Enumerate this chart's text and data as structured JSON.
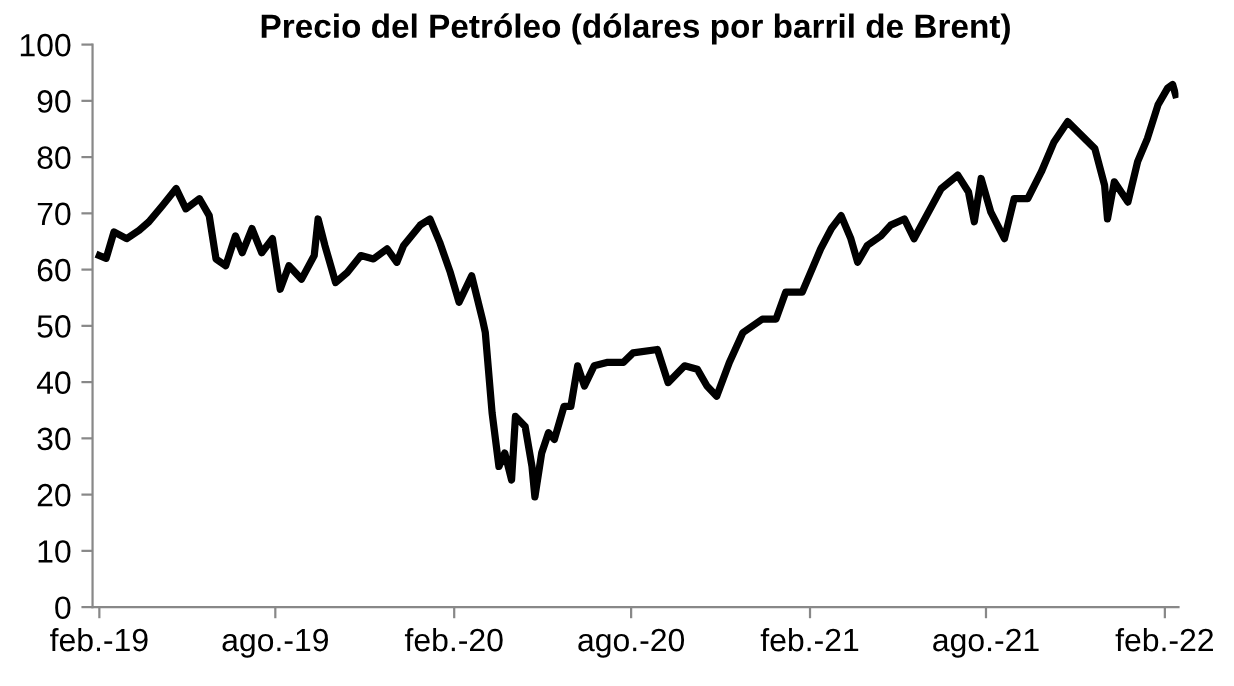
{
  "chart_data": {
    "type": "line",
    "title": "Precio del Petróleo (dólares por barril de Brent)",
    "x": [
      "2019-02-01",
      "2019-02-08",
      "2019-02-16",
      "2019-03-01",
      "2019-03-14",
      "2019-03-24",
      "2019-04-07",
      "2019-04-21",
      "2019-05-01",
      "2019-05-15",
      "2019-05-25",
      "2019-06-01",
      "2019-06-11",
      "2019-06-21",
      "2019-06-28",
      "2019-07-08",
      "2019-07-18",
      "2019-07-29",
      "2019-08-06",
      "2019-08-15",
      "2019-08-28",
      "2019-09-10",
      "2019-09-14",
      "2019-09-21",
      "2019-10-02",
      "2019-10-14",
      "2019-10-28",
      "2019-11-10",
      "2019-11-24",
      "2019-12-04",
      "2019-12-11",
      "2019-12-28",
      "2020-01-07",
      "2020-01-17",
      "2020-01-28",
      "2020-02-06",
      "2020-02-19",
      "2020-03-01",
      "2020-03-04",
      "2020-03-11",
      "2020-03-18",
      "2020-03-24",
      "2020-03-31",
      "2020-04-04",
      "2020-04-14",
      "2020-04-21",
      "2020-04-24",
      "2020-05-01",
      "2020-05-08",
      "2020-05-14",
      "2020-05-24",
      "2020-05-31",
      "2020-06-07",
      "2020-06-14",
      "2020-06-24",
      "2020-07-07",
      "2020-07-24",
      "2020-08-03",
      "2020-08-28",
      "2020-09-08",
      "2020-09-25",
      "2020-10-08",
      "2020-10-18",
      "2020-10-28",
      "2020-11-10",
      "2020-11-24",
      "2020-12-14",
      "2020-12-28",
      "2021-01-07",
      "2021-01-24",
      "2021-02-12",
      "2021-02-23",
      "2021-03-05",
      "2021-03-15",
      "2021-03-22",
      "2021-04-01",
      "2021-04-15",
      "2021-04-25",
      "2021-05-09",
      "2021-05-19",
      "2021-05-30",
      "2021-06-16",
      "2021-07-03",
      "2021-07-14",
      "2021-07-20",
      "2021-07-27",
      "2021-08-06",
      "2021-08-20",
      "2021-08-30",
      "2021-09-13",
      "2021-09-27",
      "2021-10-10",
      "2021-10-24",
      "2021-11-07",
      "2021-11-21",
      "2021-12-01",
      "2021-12-04",
      "2021-12-11",
      "2021-12-25",
      "2022-01-04",
      "2022-01-14",
      "2022-01-25",
      "2022-02-04",
      "2022-02-09",
      "2022-02-12"
    ],
    "series": [
      {
        "color": "#000000",
        "values": [
          62.5,
          62,
          66.7,
          65.5,
          67,
          68.5,
          71.4,
          74.4,
          70.8,
          72.6,
          69.6,
          61.9,
          60.7,
          66,
          63,
          67.3,
          63,
          65.5,
          56.5,
          60.7,
          58.3,
          62.5,
          69,
          64.3,
          57.7,
          59.5,
          62.5,
          61.9,
          63.7,
          61.3,
          64.3,
          67.9,
          69,
          64.9,
          59.5,
          54.2,
          58.9,
          51.2,
          48.8,
          34.5,
          25,
          27.4,
          22.6,
          33.9,
          32.1,
          25,
          19.6,
          27.4,
          31,
          29.8,
          35.7,
          35.7,
          42.9,
          39.3,
          42.9,
          43.5,
          43.5,
          45.2,
          45.8,
          39.9,
          42.9,
          42.3,
          39.3,
          37.5,
          43.5,
          48.8,
          51.2,
          51.2,
          56,
          56,
          63.7,
          67.3,
          69.6,
          65.5,
          61.3,
          64.3,
          66,
          67.9,
          69,
          65.5,
          69,
          74.4,
          76.8,
          73.8,
          68.5,
          76.2,
          70.2,
          65.5,
          72.6,
          72.6,
          77.4,
          82.7,
          86.3,
          83.9,
          81.5,
          75,
          69,
          75.6,
          72,
          79.2,
          83.3,
          89.3,
          92.3,
          92.9,
          91.1
        ]
      }
    ],
    "xlim": [
      "2019-01-25",
      "2022-02-15"
    ],
    "xticks": [
      {
        "value": "2019-02-01",
        "label": "feb.-19"
      },
      {
        "value": "2019-08-01",
        "label": "ago.-19"
      },
      {
        "value": "2020-02-01",
        "label": "feb.-20"
      },
      {
        "value": "2020-08-01",
        "label": "ago.-20"
      },
      {
        "value": "2021-02-01",
        "label": "feb.-21"
      },
      {
        "value": "2021-08-01",
        "label": "ago.-21"
      },
      {
        "value": "2022-02-01",
        "label": "feb.-22"
      }
    ],
    "ylim": [
      0,
      100
    ],
    "yticks": [
      0,
      10,
      20,
      30,
      40,
      50,
      60,
      70,
      80,
      90,
      100
    ],
    "grid": false,
    "marker": "none",
    "line_style": "solid"
  }
}
